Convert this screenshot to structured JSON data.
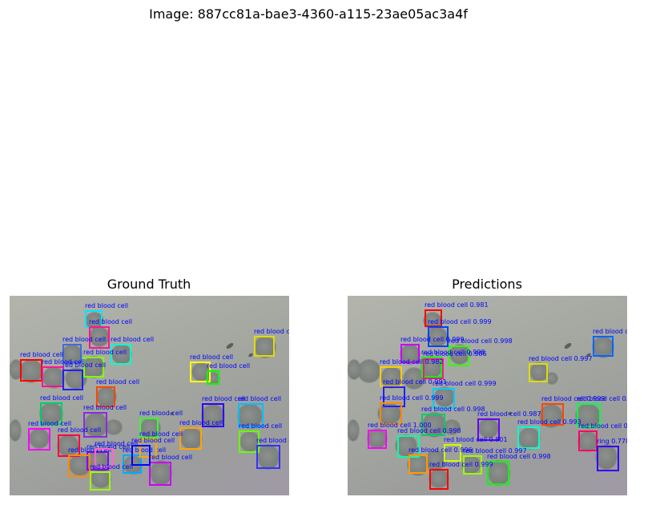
{
  "figure": {
    "title": "Image: 887cc81a-bae3-4360-a115-23ae05ac3a4f"
  },
  "panels": [
    {
      "title": "Ground Truth",
      "boxes": [
        {
          "label": "red blood cell",
          "color": "#00e5ff"
        },
        {
          "label": "red blood cell",
          "color": "#ff1493"
        },
        {
          "label": "red blood cell",
          "color": "#4169e1"
        },
        {
          "label": "red blood cell",
          "color": "#00ffcc"
        },
        {
          "label": "red blood cell",
          "color": "#7fff00"
        },
        {
          "label": "red blood cell",
          "color": "#ff0000"
        },
        {
          "label": "red blood cell",
          "color": "#ff1493"
        },
        {
          "label": "red blood cell",
          "color": "#ffff00"
        },
        {
          "label": "red blood cell",
          "color": "#00ff00"
        },
        {
          "label": "red blood cell",
          "color": "#2020ff"
        },
        {
          "label": "red blood cell",
          "color": "#dddd00"
        },
        {
          "label": "red blood cell",
          "color": "#ff4500"
        },
        {
          "label": "red blood cell",
          "color": "#00cc66"
        },
        {
          "label": "red blood cell",
          "color": "#3000ff"
        },
        {
          "label": "red blood cell",
          "color": "#00bfff"
        },
        {
          "label": "red blood cell",
          "color": "#8a2be2"
        },
        {
          "label": "red blood cell",
          "color": "#33ff33"
        },
        {
          "label": "red blood cell",
          "color": "#ff00ff"
        },
        {
          "label": "red blood cell",
          "color": "#ff0044"
        },
        {
          "label": "red blood cell",
          "color": "#ffa500"
        },
        {
          "label": "red blood cell",
          "color": "#66ff00"
        },
        {
          "label": "red blood cell",
          "color": "#3333ff"
        },
        {
          "label": "red blood cell",
          "color": "#8800ff"
        },
        {
          "label": "red blood cell",
          "color": "#00aaff"
        },
        {
          "label": "red blood cell",
          "color": "#ff8800"
        },
        {
          "label": "red blood cell",
          "color": "#ff66cc"
        },
        {
          "label": "red blood cell",
          "color": "#ffa500"
        },
        {
          "label": "red blood cell",
          "color": "#cc00ff"
        },
        {
          "label": "red blood cell",
          "color": "#99ff00"
        },
        {
          "label": "red blood cell",
          "color": "#0000ff"
        }
      ]
    },
    {
      "title": "Predictions",
      "boxes": [
        {
          "label": "red blood cell 0.981",
          "color": "#ff0000"
        },
        {
          "label": "red blood cell 0.999",
          "color": "#0044ff"
        },
        {
          "label": "red blood cell 0.999",
          "color": "#cc00ff"
        },
        {
          "label": "red blood cell 0.998",
          "color": "#33ff00"
        },
        {
          "label": "red blood cell 0.998",
          "color": "#00ff00"
        },
        {
          "label": "red blood cell 0.999",
          "color": "#0066ff"
        },
        {
          "label": "red blood cell 0.986",
          "color": "#ff1493"
        },
        {
          "label": "red blood cell 0.997",
          "color": "#dddd00"
        },
        {
          "label": "red blood cell 0.982",
          "color": "#ffcc00"
        },
        {
          "label": "red blood cell 0.999",
          "color": "#00ccff"
        },
        {
          "label": "red blood cell 0.991",
          "color": "#2020ff"
        },
        {
          "label": "red blood cell 0.999",
          "color": "#ff4500"
        },
        {
          "label": "red blood cell 0.998",
          "color": "#00cc66"
        },
        {
          "label": "red blood cell 0.999",
          "color": "#00ff44"
        },
        {
          "label": "red blood cell 0.987",
          "color": "#6600ff"
        },
        {
          "label": "red blood cell 0.999",
          "color": "#ff8800"
        },
        {
          "label": "red blood cell 1.000",
          "color": "#ff00ff"
        },
        {
          "label": "red blood cell 0.998",
          "color": "#ff0066"
        },
        {
          "label": "red blood cell 0.993",
          "color": "#00ffcc"
        },
        {
          "label": "red blood cell 0.998",
          "color": "#00ffaa"
        },
        {
          "label": "red blood cell 0.801",
          "color": "#ccff00"
        },
        {
          "label": "red blood cell 0.996",
          "color": "#ff9900"
        },
        {
          "label": "red blood cell 0.997",
          "color": "#99ff00"
        },
        {
          "label": "ring 0.778",
          "color": "#3300ff"
        },
        {
          "label": "red blood cell 0.998",
          "color": "#00ff00"
        },
        {
          "label": "red blood cell 0.999",
          "color": "#ff0000"
        }
      ]
    }
  ]
}
